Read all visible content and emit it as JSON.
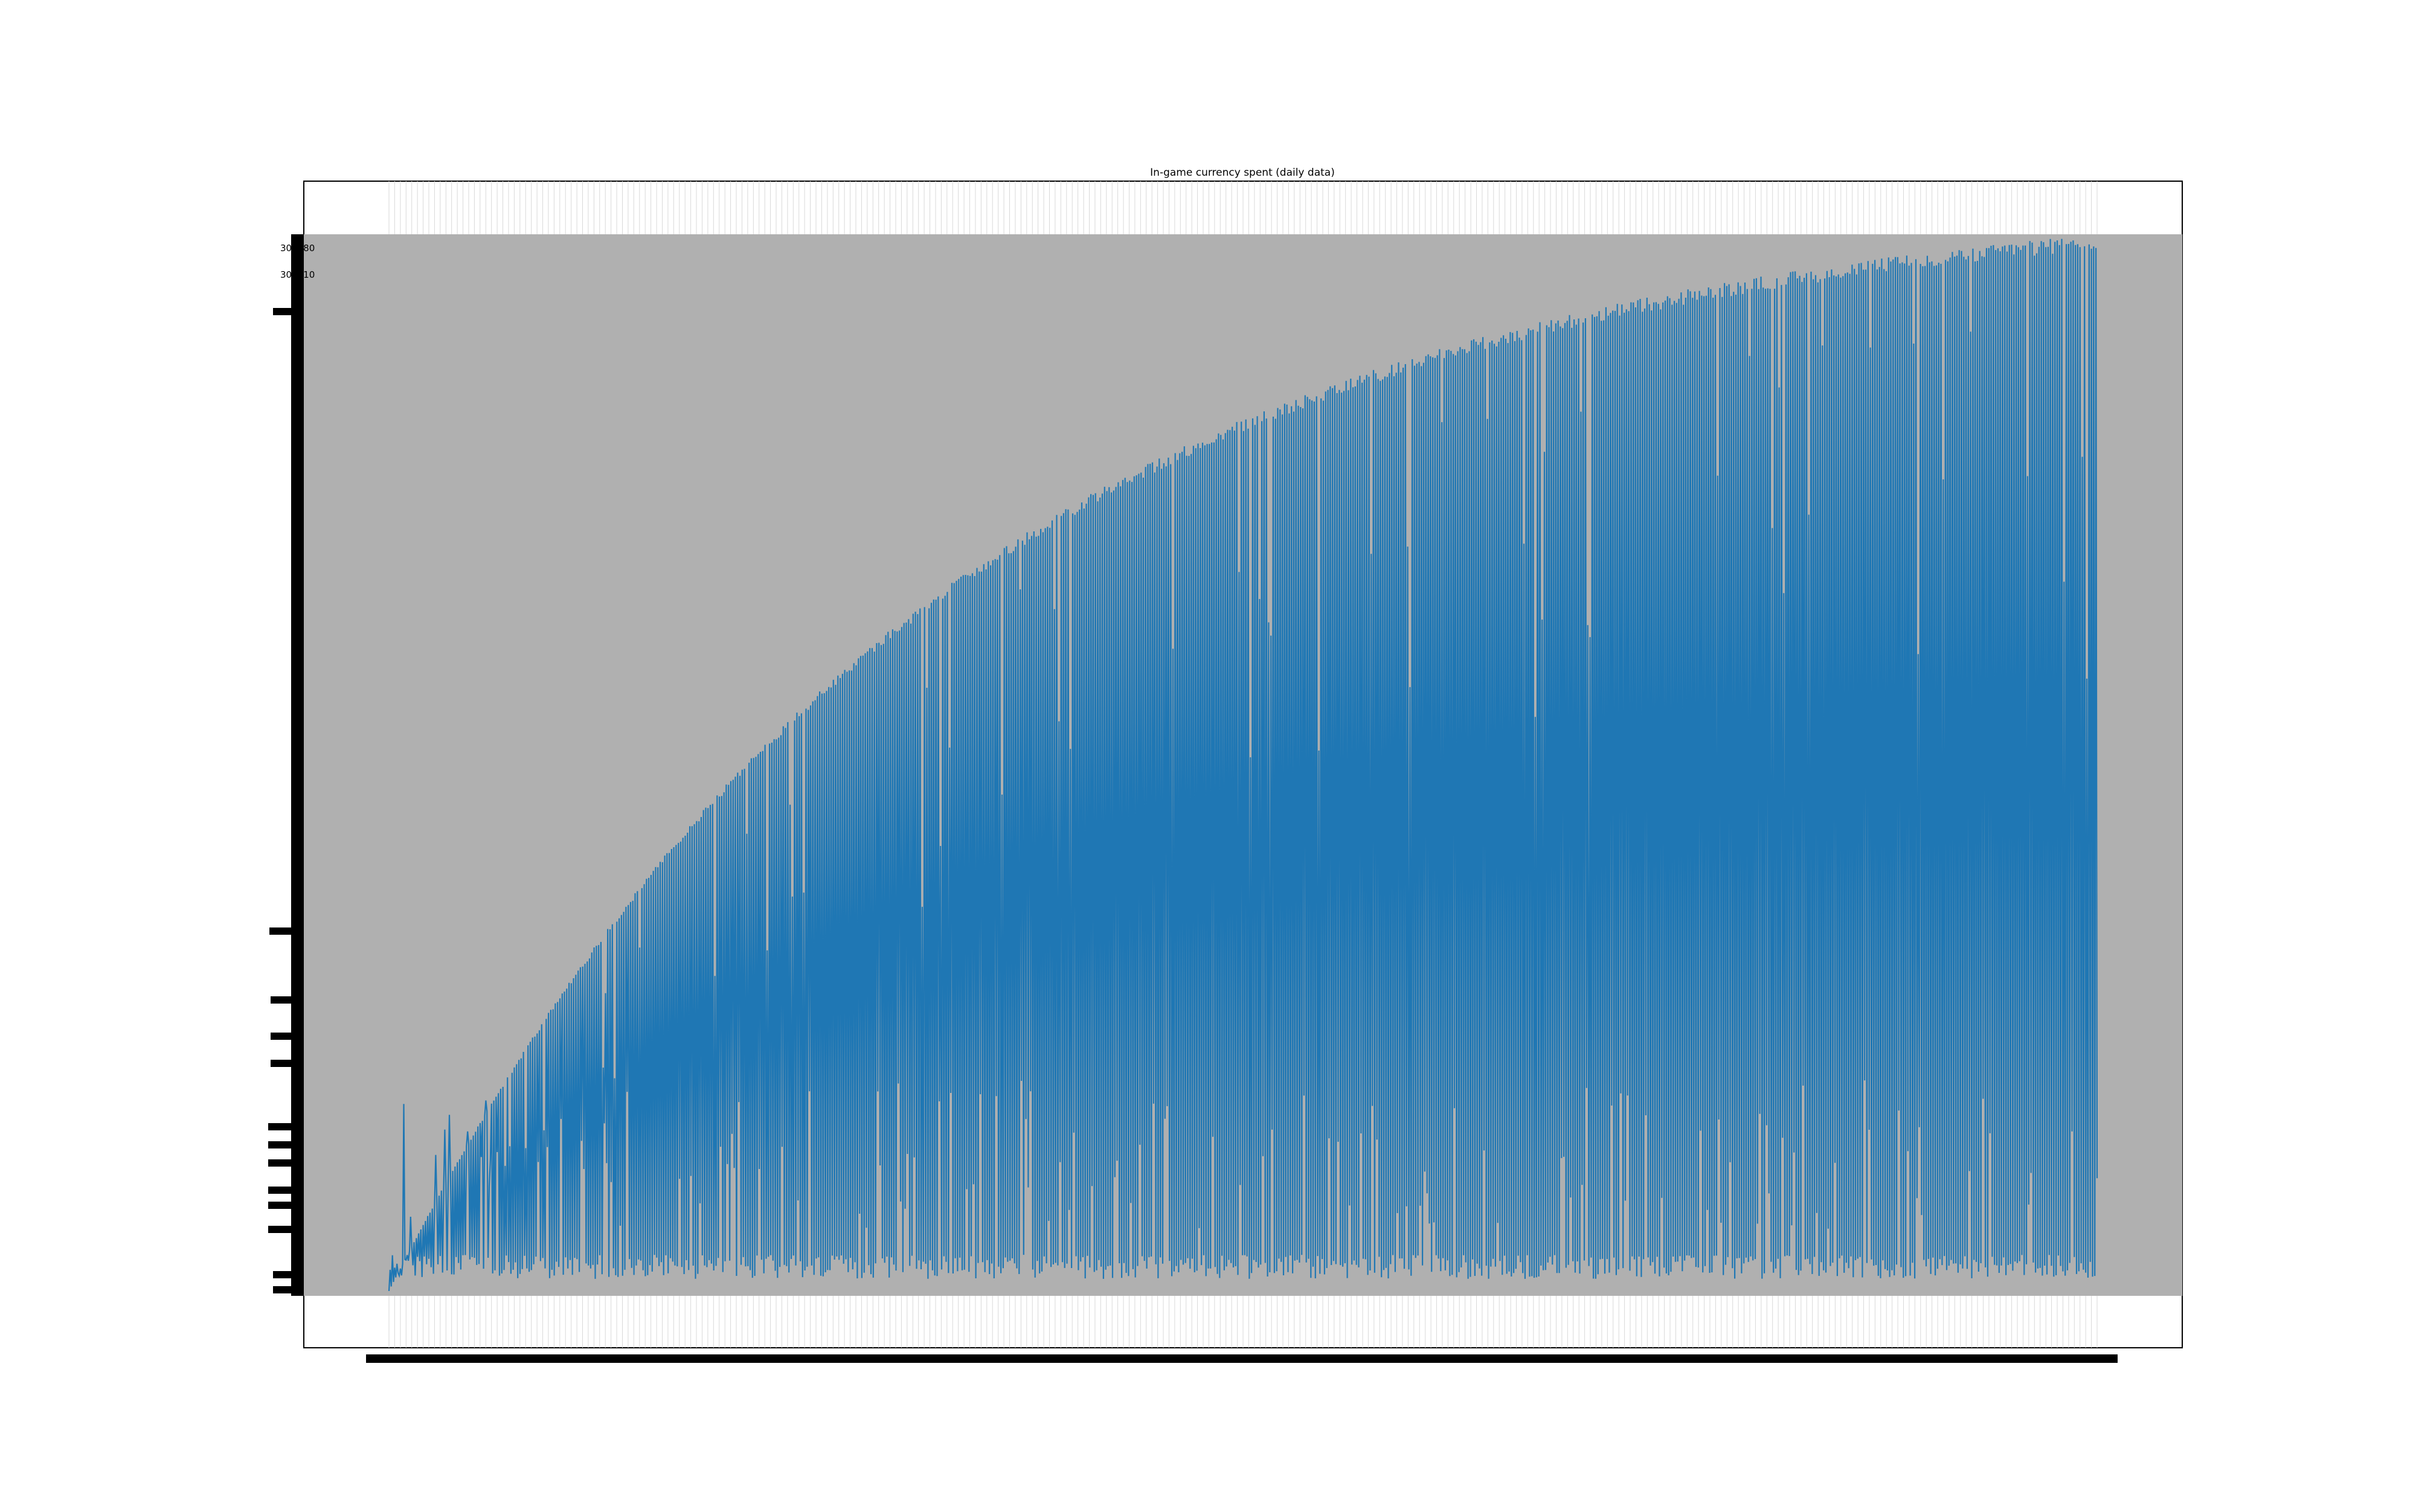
{
  "chart_data": {
    "type": "line",
    "title": "In-game currency spent (daily data)",
    "xlabel": "",
    "ylabel": "",
    "n_points": 1500,
    "envelope_shape": "saturating-growth",
    "ytick_labels_visible": [
      "307480",
      "307510"
    ],
    "colors": {
      "line": "#1f77b4",
      "axes_background": "#b0b0b0",
      "grid": "#dddddd",
      "frame": "#000000"
    },
    "grid": true,
    "legend": "none"
  }
}
